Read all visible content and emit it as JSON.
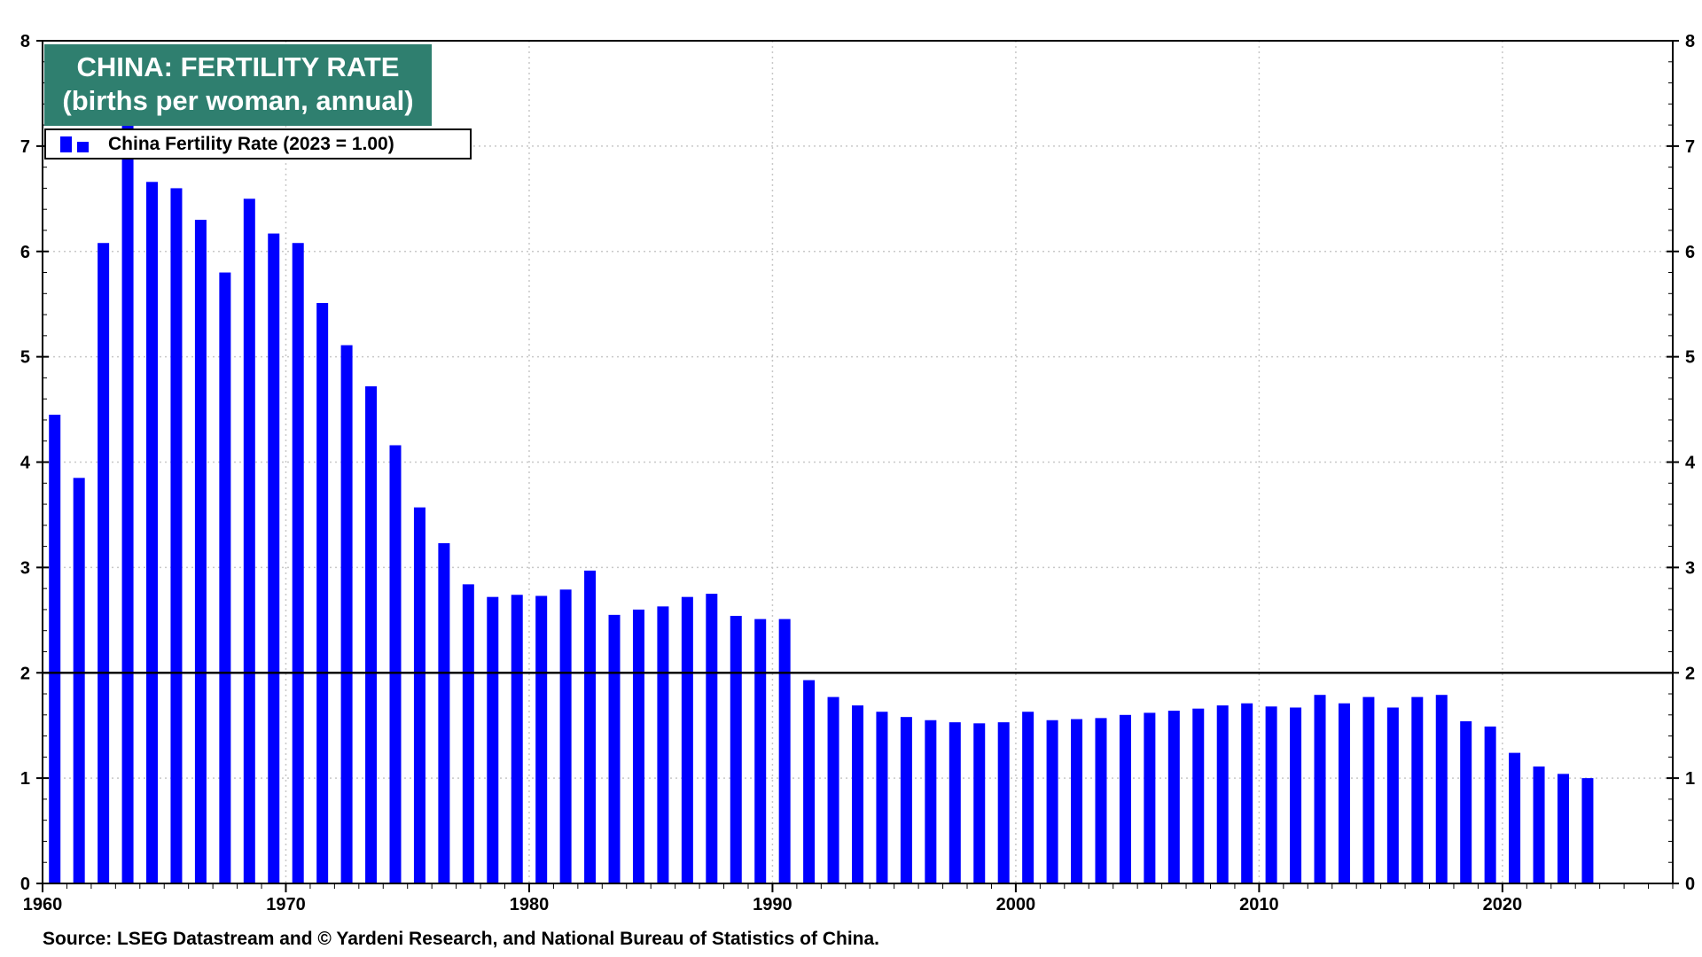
{
  "chart_data": {
    "type": "bar",
    "title": "CHINA: FERTILITY RATE",
    "subtitle": "(births per woman, annual)",
    "legend": [
      "China Fertility Rate (2023 = 1.00)"
    ],
    "legend_position": "top-left",
    "source": "Source: LSEG Datastream and © Yardeni Research, and National Bureau of Statistics of China.",
    "series_color": "#0000ff",
    "title_box_color": "#2f7f6f",
    "reference_line": 2,
    "ylim": [
      0,
      8
    ],
    "yticks": [
      "0",
      "1",
      "2",
      "3",
      "4",
      "5",
      "6",
      "7",
      "8"
    ],
    "xlim": [
      1960,
      2027
    ],
    "xticks": [
      "1960",
      "1970",
      "1980",
      "1990",
      "2000",
      "2010",
      "2020"
    ],
    "grid": true,
    "dual_y_axis": true,
    "x": [
      1960,
      1961,
      1962,
      1963,
      1964,
      1965,
      1966,
      1967,
      1968,
      1969,
      1970,
      1971,
      1972,
      1973,
      1974,
      1975,
      1976,
      1977,
      1978,
      1979,
      1980,
      1981,
      1982,
      1983,
      1984,
      1985,
      1986,
      1987,
      1988,
      1989,
      1990,
      1991,
      1992,
      1993,
      1994,
      1995,
      1996,
      1997,
      1998,
      1999,
      2000,
      2001,
      2002,
      2003,
      2004,
      2005,
      2006,
      2007,
      2008,
      2009,
      2010,
      2011,
      2012,
      2013,
      2014,
      2015,
      2016,
      2017,
      2018,
      2019,
      2020,
      2021,
      2022,
      2023
    ],
    "values": [
      4.45,
      3.85,
      6.08,
      7.2,
      6.66,
      6.6,
      6.3,
      5.8,
      6.5,
      6.17,
      6.08,
      5.51,
      5.11,
      4.72,
      4.16,
      3.57,
      3.23,
      2.84,
      2.72,
      2.74,
      2.73,
      2.79,
      2.97,
      2.55,
      2.6,
      2.63,
      2.72,
      2.75,
      2.54,
      2.51,
      2.51,
      1.93,
      1.77,
      1.69,
      1.63,
      1.58,
      1.55,
      1.53,
      1.52,
      1.53,
      1.63,
      1.55,
      1.56,
      1.57,
      1.6,
      1.62,
      1.64,
      1.66,
      1.69,
      1.71,
      1.68,
      1.67,
      1.79,
      1.71,
      1.77,
      1.67,
      1.77,
      1.79,
      1.54,
      1.49,
      1.24,
      1.11,
      1.04,
      1.0
    ]
  }
}
